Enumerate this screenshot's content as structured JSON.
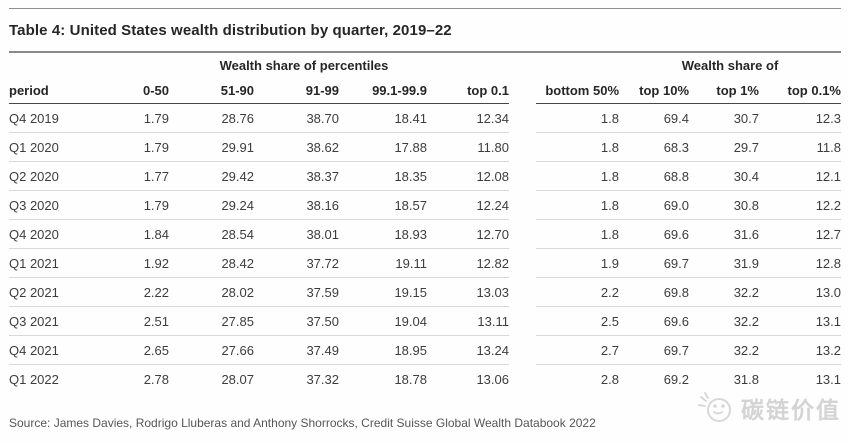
{
  "title": "Table 4: United States wealth distribution by quarter, 2019–22",
  "chart_data": {
    "type": "table",
    "title": "Table 4: United States wealth distribution by quarter, 2019–22",
    "group_headers": {
      "left": "Wealth share of percentiles",
      "right": "Wealth share of"
    },
    "columns": [
      "period",
      "0-50",
      "51-90",
      "91-99",
      "99.1-99.9",
      "top 0.1",
      "bottom 50%",
      "top 10%",
      "top 1%",
      "top 0.1%"
    ],
    "rows": [
      {
        "period": "Q4 2019",
        "values": [
          "1.79",
          "28.76",
          "38.70",
          "18.41",
          "12.34",
          "1.8",
          "69.4",
          "30.7",
          "12.3"
        ]
      },
      {
        "period": "Q1 2020",
        "values": [
          "1.79",
          "29.91",
          "38.62",
          "17.88",
          "11.80",
          "1.8",
          "68.3",
          "29.7",
          "11.8"
        ]
      },
      {
        "period": "Q2 2020",
        "values": [
          "1.77",
          "29.42",
          "38.37",
          "18.35",
          "12.08",
          "1.8",
          "68.8",
          "30.4",
          "12.1"
        ]
      },
      {
        "period": "Q3 2020",
        "values": [
          "1.79",
          "29.24",
          "38.16",
          "18.57",
          "12.24",
          "1.8",
          "69.0",
          "30.8",
          "12.2"
        ]
      },
      {
        "period": "Q4 2020",
        "values": [
          "1.84",
          "28.54",
          "38.01",
          "18.93",
          "12.70",
          "1.8",
          "69.6",
          "31.6",
          "12.7"
        ]
      },
      {
        "period": "Q1 2021",
        "values": [
          "1.92",
          "28.42",
          "37.72",
          "19.11",
          "12.82",
          "1.9",
          "69.7",
          "31.9",
          "12.8"
        ]
      },
      {
        "period": "Q2 2021",
        "values": [
          "2.22",
          "28.02",
          "37.59",
          "19.15",
          "13.03",
          "2.2",
          "69.8",
          "32.2",
          "13.0"
        ]
      },
      {
        "period": "Q3 2021",
        "values": [
          "2.51",
          "27.85",
          "37.50",
          "19.04",
          "13.11",
          "2.5",
          "69.6",
          "32.2",
          "13.1"
        ]
      },
      {
        "period": "Q4 2021",
        "values": [
          "2.65",
          "27.66",
          "37.49",
          "18.95",
          "13.24",
          "2.7",
          "69.7",
          "32.2",
          "13.2"
        ]
      },
      {
        "period": "Q1 2022",
        "values": [
          "2.78",
          "28.07",
          "37.32",
          "18.78",
          "13.06",
          "2.8",
          "69.2",
          "31.8",
          "13.1"
        ]
      }
    ],
    "layout": {
      "left_group_column_span": "0-50 through top 0.1",
      "right_group_column_span": "top 10% through top 0.1%",
      "grid": "horizontal row separators only"
    }
  },
  "source": "Source: James Davies, Rodrigo Lluberas and Anthony Shorrocks, Credit Suisse Global Wealth Databook 2022",
  "watermark": {
    "text": "碳链价值",
    "icon": "doodle-megaphone-icon"
  },
  "colors": {
    "background": "#fefefe",
    "title_text": "#262626",
    "header_text": "#262626",
    "body_text": "#3d3d3d",
    "top_rule": "#8f8f8f",
    "title_rule": "#8a8a8a",
    "header_rule": "#474747",
    "row_rule": "#d8d8d8",
    "source_text": "#565656",
    "watermark": "#d4d4d4"
  }
}
